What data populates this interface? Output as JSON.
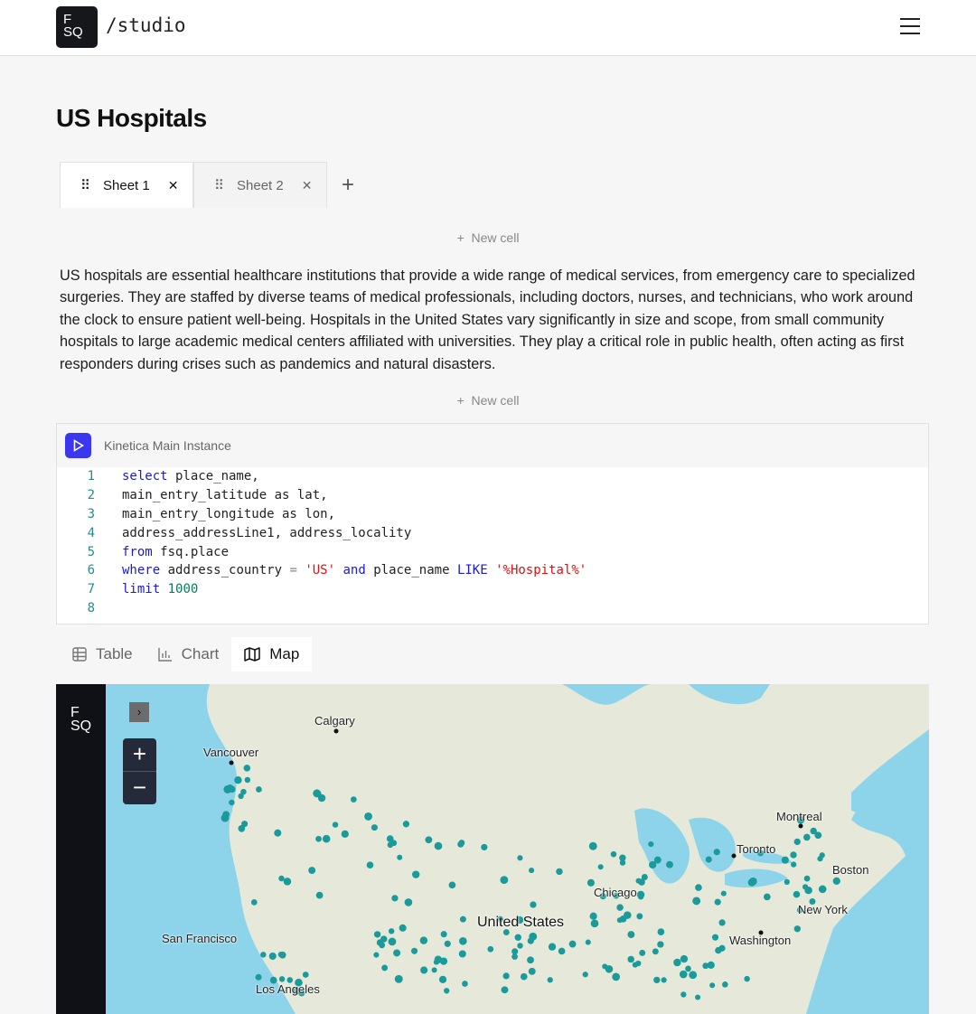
{
  "app": {
    "logo": "F SQ",
    "logo_line1": "F",
    "logo_line2": "SQ",
    "name": "/studio"
  },
  "page": {
    "title": "US Hospitals"
  },
  "sheets": [
    {
      "label": "Sheet 1",
      "active": true
    },
    {
      "label": "Sheet 2",
      "active": false
    }
  ],
  "new_cell_label": "New cell",
  "description": "US hospitals are essential healthcare institutions that provide a wide range of medical services, from emergency care to specialized surgeries. They are staffed by diverse teams of medical professionals, including doctors, nurses, and technicians, who work around the clock to ensure patient well-being. Hospitals in the United States vary significantly in size and scope, from small community hospitals to large academic medical centers affiliated with universities. They play a critical role in public health, often acting as first responders during crises such as pandemics and natural disasters.",
  "query_cell": {
    "instance": "Kinetica Main Instance",
    "lines": [
      "1",
      "2",
      "3",
      "4",
      "5",
      "6",
      "7",
      "8"
    ]
  },
  "view_tabs": [
    {
      "label": "Table",
      "icon": "table-icon"
    },
    {
      "label": "Chart",
      "icon": "bar-chart-icon"
    },
    {
      "label": "Map",
      "icon": "map-icon",
      "active": true
    }
  ],
  "map": {
    "labels": {
      "calgary": "Calgary",
      "vancouver": "Vancouver",
      "montreal": "Montreal",
      "toronto": "Toronto",
      "boston": "Boston",
      "chicago": "Chicago",
      "new_york": "New York",
      "united_states": "United States",
      "san_francisco": "San Francisco",
      "washington": "Washington",
      "los_angeles": "Los Angeles"
    },
    "point_color": "#1a9a9a",
    "water_color": "#8dd4ea",
    "land_color": "#e6e9da"
  }
}
